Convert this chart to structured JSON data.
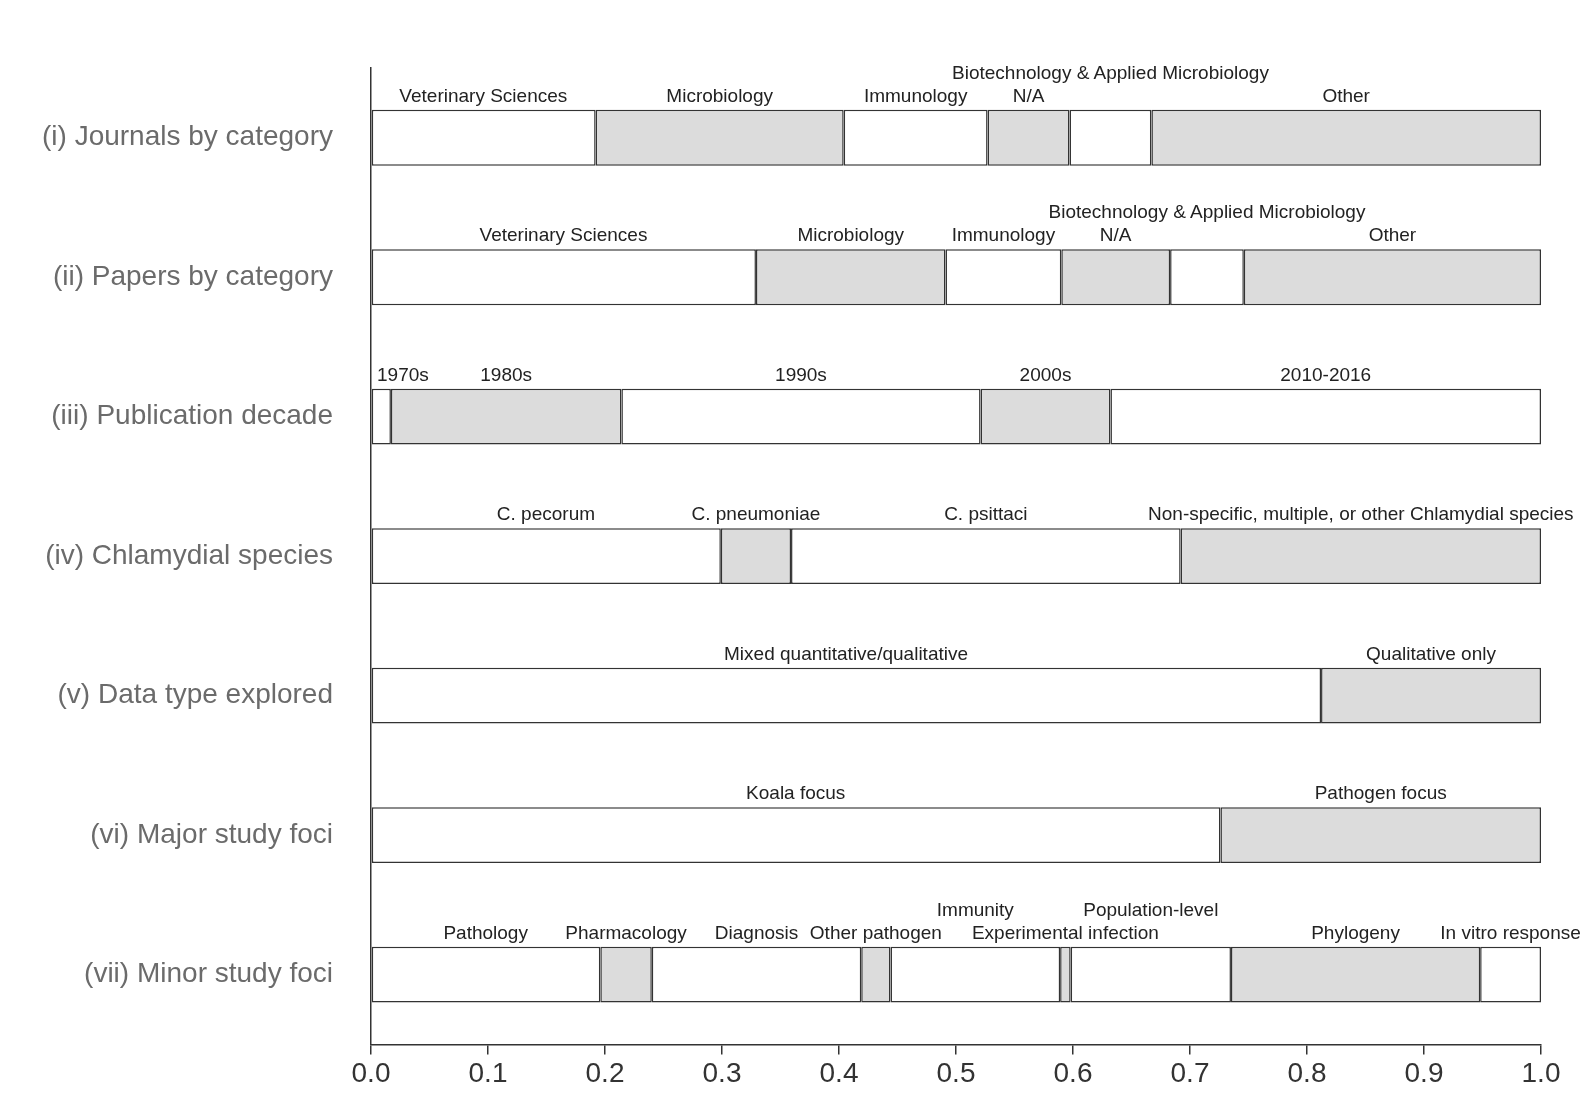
{
  "chart_data": {
    "type": "bar",
    "orientation": "horizontal",
    "stacked": true,
    "categories": [
      "(i) Journals by category",
      "(ii) Papers by category",
      "(iii) Publication decade",
      "(iv) Chlamydial species",
      "(v) Data type explored",
      "(vi) Major study foci",
      "(vii) Minor study foci"
    ],
    "series": [
      {
        "color": "#ffffff",
        "values": [
          0.192,
          0.329,
          0.017,
          0.299,
          0.812,
          0.726,
          0.196
        ]
      },
      {
        "color": "#dcdcdc",
        "values": [
          0.212,
          0.162,
          0.197,
          0.06,
          0.188,
          0.274,
          0.044
        ]
      },
      {
        "color": "#ffffff",
        "values": [
          0.123,
          0.099,
          0.307,
          0.333,
          null,
          null,
          0.179
        ]
      },
      {
        "color": "#dcdcdc",
        "values": [
          0.07,
          0.093,
          0.111,
          0.308,
          null,
          null,
          0.025
        ]
      },
      {
        "color": "#ffffff",
        "values": [
          0.07,
          0.063,
          0.368,
          null,
          null,
          null,
          0.145
        ]
      },
      {
        "color": "#dcdcdc",
        "values": [
          0.333,
          0.254,
          null,
          null,
          null,
          null,
          0.009
        ]
      },
      {
        "color": "#ffffff",
        "values": [
          null,
          null,
          null,
          null,
          null,
          null,
          0.137
        ]
      },
      {
        "color": "#dcdcdc",
        "values": [
          null,
          null,
          null,
          null,
          null,
          null,
          0.213
        ]
      },
      {
        "color": "#ffffff",
        "values": [
          null,
          null,
          null,
          null,
          null,
          null,
          0.052
        ]
      }
    ],
    "xlim": [
      0,
      1
    ],
    "xticks": [
      {
        "value": 0,
        "label": "0.0"
      },
      {
        "value": 0.1,
        "label": "0.1"
      },
      {
        "value": 0.2,
        "label": "0.2"
      },
      {
        "value": 0.3,
        "label": "0.3"
      },
      {
        "value": 0.4,
        "label": "0.4"
      },
      {
        "value": 0.5,
        "label": "0.5"
      },
      {
        "value": 0.6,
        "label": "0.6"
      },
      {
        "value": 0.7,
        "label": "0.7"
      },
      {
        "value": 0.8,
        "label": "0.8"
      },
      {
        "value": 0.9,
        "label": "0.9"
      },
      {
        "value": 1,
        "label": "1.0"
      }
    ],
    "annotations": [
      "Veterinary Sciences",
      "Microbiology",
      "Immunology",
      "N/A",
      "Biotechnology & Applied Microbiology",
      "Other",
      "Veterinary Sciences",
      "Microbiology",
      "Immunology",
      "N/A",
      "Biotechnology & Applied Microbiology",
      "Other",
      "1970s",
      "1980s",
      "1990s",
      "2000s",
      "2010-2016",
      "C. pecorum",
      "C. pneumoniae",
      "C. psittaci",
      "Non-specific, multiple, or other Chlamydial species",
      "Mixed quantitative/qualitative",
      "Qualitative only",
      "Koala focus",
      "Pathogen focus",
      "Pathology",
      "Pharmacology",
      "Diagnosis",
      "Other pathogen",
      "Immunity",
      "Experimental infection",
      "Population-level",
      "Phylogeny",
      "In vitro response"
    ]
  }
}
